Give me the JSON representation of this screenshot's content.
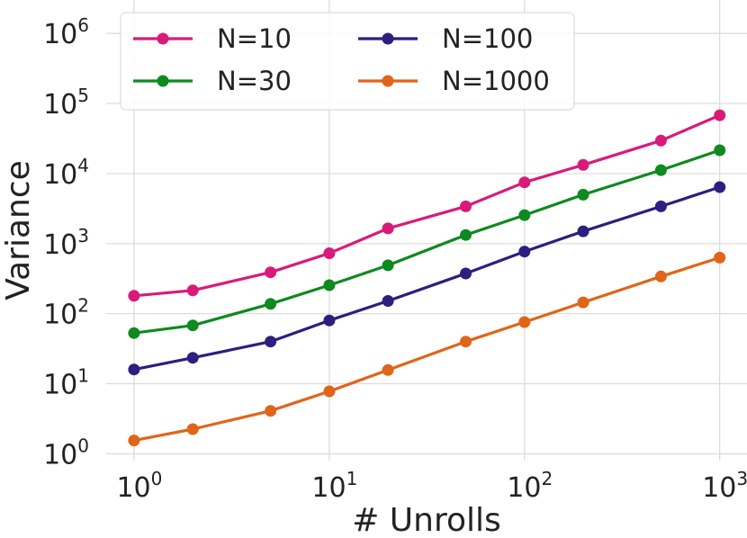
{
  "chart_data": {
    "type": "line",
    "xlabel": "# Unrolls",
    "ylabel": "Variance",
    "x_scale": "log",
    "y_scale": "log",
    "xlim": [
      0.72,
      1380
    ],
    "ylim": [
      0.8,
      3000000
    ],
    "grid": true,
    "legend_position": "upper-left",
    "legend_columns": 2,
    "x_ticks": [
      {
        "value": 1,
        "base": "10",
        "exp": "0"
      },
      {
        "value": 10,
        "base": "10",
        "exp": "1"
      },
      {
        "value": 100,
        "base": "10",
        "exp": "2"
      },
      {
        "value": 1000,
        "base": "10",
        "exp": "3"
      }
    ],
    "y_ticks": [
      {
        "value": 1,
        "base": "10",
        "exp": "0"
      },
      {
        "value": 10,
        "base": "10",
        "exp": "1"
      },
      {
        "value": 100,
        "base": "10",
        "exp": "2"
      },
      {
        "value": 1000,
        "base": "10",
        "exp": "3"
      },
      {
        "value": 10000,
        "base": "10",
        "exp": "4"
      },
      {
        "value": 100000,
        "base": "10",
        "exp": "5"
      },
      {
        "value": 1000000,
        "base": "10",
        "exp": "6"
      }
    ],
    "x": [
      1,
      2,
      5,
      10,
      20,
      50,
      100,
      200,
      500,
      1000
    ],
    "series": [
      {
        "name": "N=10",
        "color": "#d81b7a",
        "values": [
          180,
          215,
          390,
          730,
          1650,
          3400,
          7500,
          13300,
          29500,
          68000
        ]
      },
      {
        "name": "N=30",
        "color": "#0e8a1f",
        "values": [
          53,
          68,
          138,
          255,
          490,
          1330,
          2550,
          5000,
          11200,
          21500
        ]
      },
      {
        "name": "N=100",
        "color": "#2b1f7f",
        "values": [
          16,
          23.5,
          40,
          80,
          152,
          375,
          770,
          1500,
          3400,
          6400
        ]
      },
      {
        "name": "N=1000",
        "color": "#e06518",
        "values": [
          1.55,
          2.25,
          4.1,
          7.8,
          15.7,
          40,
          76,
          145,
          340,
          630
        ]
      }
    ]
  }
}
